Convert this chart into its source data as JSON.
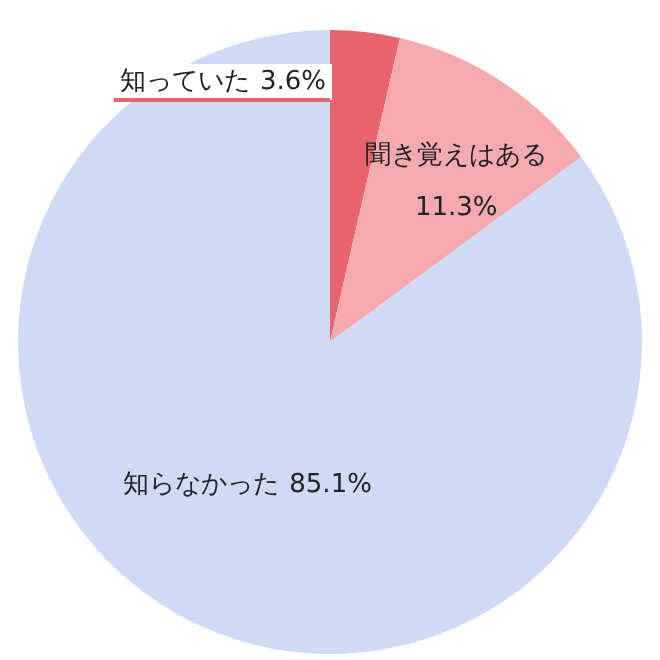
{
  "chart_data": {
    "type": "pie",
    "categories": [
      "知っていた",
      "聞き覚えはある",
      "知らなかった"
    ],
    "values": [
      3.6,
      11.3,
      85.1
    ],
    "colors": [
      "#e8646c",
      "#f4aaae",
      "#cfdaf4"
    ],
    "value_labels": [
      "3.6%",
      "11.3%",
      "85.1%"
    ]
  }
}
